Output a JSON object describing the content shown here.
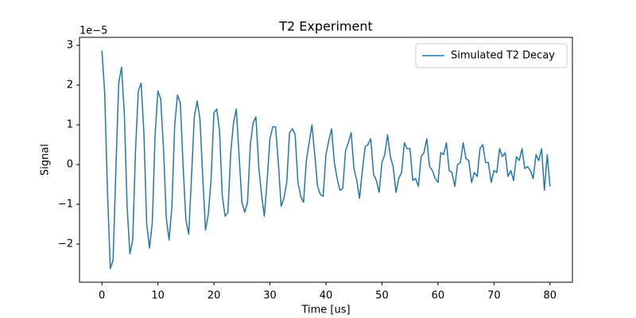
{
  "chart_data": {
    "type": "line",
    "title": "T2 Experiment",
    "xlabel": "Time [us]",
    "ylabel": "Signal",
    "y_offset_label": "1e−5",
    "x": [
      0,
      0.5,
      1,
      1.5,
      2,
      2.5,
      3,
      3.5,
      4,
      4.5,
      5,
      5.5,
      6,
      6.5,
      7,
      7.5,
      8,
      8.5,
      9,
      9.5,
      10,
      10.5,
      11,
      11.5,
      12,
      12.5,
      13,
      13.5,
      14,
      14.5,
      15,
      15.5,
      16,
      16.5,
      17,
      17.5,
      18,
      18.5,
      19,
      19.5,
      20,
      20.5,
      21,
      21.5,
      22,
      22.5,
      23,
      23.5,
      24,
      24.5,
      25,
      25.5,
      26,
      26.5,
      27,
      27.5,
      28,
      28.5,
      29,
      29.5,
      30,
      30.5,
      31,
      31.5,
      32,
      32.5,
      33,
      33.5,
      34,
      34.5,
      35,
      35.5,
      36,
      36.5,
      37,
      37.5,
      38,
      38.5,
      39,
      39.5,
      40,
      40.5,
      41,
      41.5,
      42,
      42.5,
      43,
      43.5,
      44,
      44.5,
      45,
      45.5,
      46,
      46.5,
      47,
      47.5,
      48,
      48.5,
      49,
      49.5,
      50,
      50.5,
      51,
      51.5,
      52,
      52.5,
      53,
      53.5,
      54,
      54.5,
      55,
      55.5,
      56,
      56.5,
      57,
      57.5,
      58,
      58.5,
      59,
      59.5,
      60,
      60.5,
      61,
      61.5,
      62,
      62.5,
      63,
      63.5,
      64,
      64.5,
      65,
      65.5,
      66,
      66.5,
      67,
      67.5,
      68,
      68.5,
      69,
      69.5,
      70,
      70.5,
      71,
      71.5,
      72,
      72.5,
      73,
      73.5,
      74,
      74.5,
      75,
      75.5,
      76,
      76.5,
      77,
      77.5,
      78,
      78.5,
      79,
      79.5,
      80
    ],
    "series": [
      {
        "name": "Simulated T2 Decay",
        "color": "#1f77b4",
        "values": [
          2.87,
          1.8,
          -0.7,
          -2.62,
          -2.4,
          -0.1,
          2.05,
          2.45,
          1.3,
          -1.05,
          -2.25,
          -1.9,
          0.35,
          1.85,
          2.05,
          0.8,
          -1.5,
          -2.1,
          -1.45,
          0.75,
          1.85,
          1.65,
          0.4,
          -1.35,
          -1.9,
          -1.05,
          1.0,
          1.75,
          1.55,
          -0.05,
          -1.4,
          -1.75,
          -0.3,
          1.2,
          1.6,
          1.15,
          -0.3,
          -1.65,
          -1.25,
          -0.35,
          1.3,
          1.4,
          0.85,
          -0.8,
          -1.3,
          -1.2,
          0.3,
          1.05,
          1.4,
          0.2,
          -0.95,
          -1.2,
          -0.95,
          0.5,
          1.05,
          1.2,
          -0.05,
          -0.75,
          -1.3,
          -0.4,
          0.65,
          0.95,
          0.95,
          0.05,
          -1.05,
          -0.85,
          -0.45,
          0.8,
          0.9,
          0.75,
          -0.45,
          -0.8,
          -0.95,
          0.1,
          0.55,
          1.0,
          0.25,
          -0.55,
          -0.75,
          -0.8,
          0.25,
          0.6,
          0.9,
          0.05,
          -0.35,
          -0.65,
          -0.6,
          0.35,
          0.55,
          0.8,
          -0.1,
          -0.4,
          -0.85,
          -0.15,
          0.45,
          0.5,
          0.65,
          -0.25,
          -0.4,
          -0.7,
          0.05,
          0.25,
          0.75,
          0.2,
          -0.05,
          -0.7,
          -0.35,
          -0.2,
          0.55,
          0.4,
          0.4,
          -0.4,
          -0.35,
          -0.55,
          0.2,
          0.3,
          0.65,
          -0.05,
          -0.15,
          -0.35,
          -0.45,
          0.3,
          0.25,
          0.55,
          -0.15,
          -0.2,
          -0.55,
          0.0,
          0.05,
          0.55,
          0.15,
          0.1,
          -0.45,
          -0.2,
          -0.3,
          0.4,
          0.5,
          0.05,
          0.05,
          -0.45,
          -0.15,
          -0.2,
          0.4,
          0.2,
          0.3,
          -0.3,
          -0.15,
          -0.4,
          0.2,
          0.1,
          0.4,
          -0.1,
          -0.05,
          -0.15,
          -0.35,
          0.25,
          0.1,
          0.4,
          -0.65,
          0.25,
          -0.55
        ]
      }
    ],
    "xlim": [
      -4,
      84
    ],
    "xticks": [
      0,
      10,
      20,
      30,
      40,
      50,
      60,
      70,
      80
    ],
    "ylim": [
      -2.96,
      3.2
    ],
    "yticks": [
      -2,
      -1,
      0,
      1,
      2,
      3
    ],
    "legend": "upper right",
    "grid": false
  }
}
